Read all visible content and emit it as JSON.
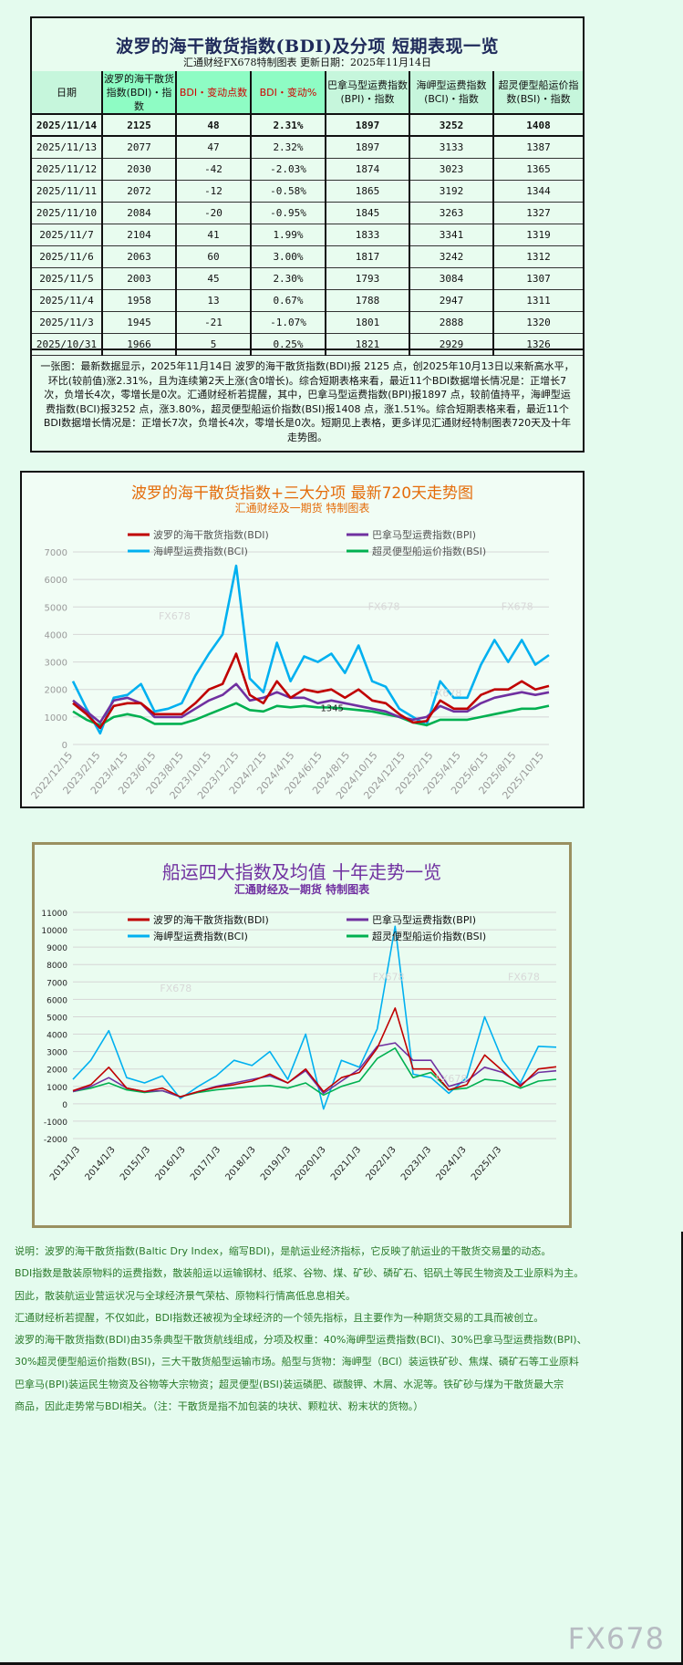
{
  "header": {
    "title": "波罗的海干散货指数(BDI)及分项 短期表现一览",
    "subtitle": "汇通财经FX678特制图表      更新日期：2025年11月14日"
  },
  "table": {
    "columns": [
      "日期",
      "波罗的海干散货指数(BDI)・指数",
      "BDI・变动点数",
      "BDI・变动%",
      "巴拿马型运费指数(BPI)・指数",
      "海岬型运费指数(BCI)・指数",
      "超灵便型船运价指数(BSI)・指数"
    ],
    "rows": [
      [
        "2025/11/14",
        "2125",
        "48",
        "2.31%",
        "1897",
        "3252",
        "1408"
      ],
      [
        "2025/11/13",
        "2077",
        "47",
        "2.32%",
        "1897",
        "3133",
        "1387"
      ],
      [
        "2025/11/12",
        "2030",
        "-42",
        "-2.03%",
        "1874",
        "3023",
        "1365"
      ],
      [
        "2025/11/11",
        "2072",
        "-12",
        "-0.58%",
        "1865",
        "3192",
        "1344"
      ],
      [
        "2025/11/10",
        "2084",
        "-20",
        "-0.95%",
        "1845",
        "3263",
        "1327"
      ],
      [
        "2025/11/7",
        "2104",
        "41",
        "1.99%",
        "1833",
        "3341",
        "1319"
      ],
      [
        "2025/11/6",
        "2063",
        "60",
        "3.00%",
        "1817",
        "3242",
        "1312"
      ],
      [
        "2025/11/5",
        "2003",
        "45",
        "2.30%",
        "1793",
        "3084",
        "1307"
      ],
      [
        "2025/11/4",
        "1958",
        "13",
        "0.67%",
        "1788",
        "2947",
        "1311"
      ],
      [
        "2025/11/3",
        "1945",
        "-21",
        "-1.07%",
        "1801",
        "2888",
        "1320"
      ],
      [
        "2025/10/31",
        "1966",
        "5",
        "0.25%",
        "1821",
        "2929",
        "1326"
      ]
    ]
  },
  "summary": "一张图：最新数据显示，2025年11月14日 波罗的海干散货指数(BDI)报 2125 点，创2025年10月13日以来新高水平，环比(较前值)涨2.31%，且为连续第2天上涨(含0增长)。综合短期表格来看，最近11个BDI数据增长情况是：正增长7次，负增长4次，零增长是0次。汇通财经析若提醒，其中，巴拿马型运费指数(BPI)报1897 点，较前值持平，海岬型运费指数(BCI)报3252 点，涨3.80%，超灵便型船运价指数(BSI)报1408 点，涨1.51%。综合短期表格来看，最近11个BDI数据增长情况是：正增长7次，负增长4次，零增长是0次。短期见上表格，更多详见汇通财经特制图表720天及十年走势图。",
  "colors": {
    "BDI": "#c00000",
    "BPI": "#7030a0",
    "BCI": "#00b0f0",
    "BSI": "#00b050",
    "chart1_title": "#e46c0a",
    "chart2_title": "#7030a0"
  },
  "chart_data": [
    {
      "type": "line",
      "title": "波罗的海干散货指数+三大分项  最新720天走势图",
      "subtitle": "汇通财经及一期货  特制图表",
      "ylim": [
        0,
        7000
      ],
      "yticks": [
        0,
        1000,
        2000,
        3000,
        4000,
        5000,
        6000,
        7000
      ],
      "grid": true,
      "legend": "top",
      "xticks": [
        "2022/12/15",
        "2023/2/15",
        "2023/4/15",
        "2023/6/15",
        "2023/8/15",
        "2023/10/15",
        "2023/12/15",
        "2024/2/15",
        "2024/4/15",
        "2024/6/15",
        "2024/8/15",
        "2024/10/15",
        "2024/12/15",
        "2025/2/15",
        "2025/4/15",
        "2025/6/15",
        "2025/8/15",
        "2025/10/15"
      ],
      "annotation": "1345",
      "watermark": "FX678",
      "series": [
        {
          "name": "波罗的海干散货指数(BDI)",
          "key": "BDI",
          "values": [
            1500,
            1100,
            600,
            1400,
            1500,
            1500,
            1100,
            1100,
            1100,
            1500,
            2000,
            2200,
            3300,
            1800,
            1500,
            2300,
            1700,
            2000,
            1900,
            2000,
            1700,
            2000,
            1600,
            1500,
            1100,
            800,
            850,
            1600,
            1300,
            1300,
            1800,
            2000,
            2000,
            2300,
            2000,
            2125
          ]
        },
        {
          "name": "巴拿马型运费指数(BPI)",
          "key": "BPI",
          "values": [
            1600,
            1200,
            800,
            1600,
            1700,
            1500,
            1000,
            1000,
            1000,
            1300,
            1600,
            1800,
            2200,
            1600,
            1700,
            1900,
            1700,
            1700,
            1500,
            1600,
            1500,
            1400,
            1300,
            1200,
            1000,
            900,
            1000,
            1400,
            1200,
            1200,
            1500,
            1700,
            1800,
            1900,
            1800,
            1897
          ]
        },
        {
          "name": "海岬型运费指数(BCI)",
          "key": "BCI",
          "values": [
            2300,
            1300,
            400,
            1700,
            1800,
            2200,
            1200,
            1300,
            1500,
            2500,
            3300,
            4000,
            6500,
            2400,
            1900,
            3700,
            2300,
            3200,
            3000,
            3300,
            2600,
            3600,
            2300,
            2100,
            1300,
            1000,
            700,
            2300,
            1700,
            1700,
            2900,
            3800,
            3000,
            3800,
            2900,
            3252
          ]
        },
        {
          "name": "超灵便型船运价指数(BSI)",
          "key": "BSI",
          "values": [
            1200,
            900,
            700,
            1000,
            1100,
            1000,
            750,
            750,
            750,
            900,
            1100,
            1300,
            1500,
            1250,
            1200,
            1400,
            1350,
            1400,
            1350,
            1345,
            1300,
            1250,
            1200,
            1100,
            1000,
            800,
            700,
            900,
            900,
            900,
            1000,
            1100,
            1200,
            1300,
            1300,
            1408
          ]
        }
      ]
    },
    {
      "type": "line",
      "title": "船运四大指数及均值 十年走势一览",
      "subtitle": "汇通财经及一期货 特制图表",
      "ylim": [
        -2000,
        11000
      ],
      "yticks": [
        -2000,
        -1000,
        0,
        1000,
        2000,
        3000,
        4000,
        5000,
        6000,
        7000,
        8000,
        9000,
        10000,
        11000
      ],
      "grid": true,
      "legend": "top",
      "watermark": "FX678",
      "xticks": [
        "2013/1/3",
        "2014/1/3",
        "2015/1/3",
        "2016/1/3",
        "2017/1/3",
        "2018/1/3",
        "2019/1/3",
        "2020/1/3",
        "2021/1/3",
        "2022/1/3",
        "2023/1/3",
        "2024/1/3",
        "2025/1/3"
      ],
      "series": [
        {
          "name": "波罗的海干散货指数(BDI)",
          "key": "BDI",
          "values": [
            750,
            1100,
            2100,
            900,
            700,
            900,
            400,
            700,
            950,
            1100,
            1300,
            1700,
            1200,
            2000,
            700,
            1500,
            1800,
            3200,
            5500,
            2000,
            2000,
            800,
            1100,
            2800,
            1900,
            1000,
            2000,
            2125
          ]
        },
        {
          "name": "巴拿马型运费指数(BPI)",
          "key": "BPI",
          "values": [
            700,
            1000,
            1500,
            900,
            700,
            750,
            400,
            700,
            1000,
            1200,
            1400,
            1600,
            1200,
            1900,
            600,
            1300,
            2000,
            3300,
            3500,
            2500,
            2500,
            1000,
            1300,
            2100,
            1800,
            1100,
            1800,
            1897
          ]
        },
        {
          "name": "海岬型运费指数(BCI)",
          "key": "BCI",
          "values": [
            1400,
            2500,
            4200,
            1500,
            1200,
            1600,
            300,
            1000,
            1600,
            2500,
            2200,
            3000,
            1400,
            4000,
            -300,
            2500,
            2100,
            4300,
            10200,
            1700,
            1500,
            600,
            1500,
            5000,
            2500,
            1200,
            3300,
            3252
          ]
        },
        {
          "name": "超灵便型船运价指数(BSI)",
          "key": "BSI",
          "values": [
            700,
            900,
            1200,
            800,
            650,
            750,
            400,
            650,
            800,
            900,
            1000,
            1050,
            900,
            1200,
            500,
            1000,
            1300,
            2600,
            3200,
            1500,
            1800,
            800,
            900,
            1400,
            1300,
            900,
            1300,
            1408
          ]
        }
      ]
    }
  ],
  "notes": [
    "说明：波罗的海干散货指数(Baltic Dry Index，缩写BDI)，是航运业经济指标，它反映了航运业的干散货交易量的动态。",
    "BDI指数是散装原物料的运费指数，散装船运以运输钢材、纸浆、谷物、煤、矿砂、磷矿石、铝矾土等民生物资及工业原料为主。",
    "因此，散装航运业营运状况与全球经济景气荣枯、原物料行情高低息息相关。",
    "汇通财经析若提醒，不仅如此，BDI指数还被视为全球经济的一个领先指标，且主要作为一种期货交易的工具而被创立。",
    "波罗的海干散货指数(BDI)由35条典型干散货航线组成，分项及权重：40%海岬型运费指数(BCI)、30%巴拿马型运费指数(BPI)、",
    "30%超灵便型船运价指数(BSI)，三大干散货船型运输市场。船型与货物：海岬型（BCI）装运铁矿砂、焦煤、磷矿石等工业原料",
    "巴拿马(BPI)装运民生物资及谷物等大宗物资；超灵便型(BSI)装运磷肥、碳酸钾、木屑、水泥等。铁矿砂与煤为干散货最大宗",
    "商品，因此走势常与BDI相关。（注：干散货是指不加包装的块状、颗粒状、粉末状的货物。）"
  ],
  "watermark": "FX678"
}
